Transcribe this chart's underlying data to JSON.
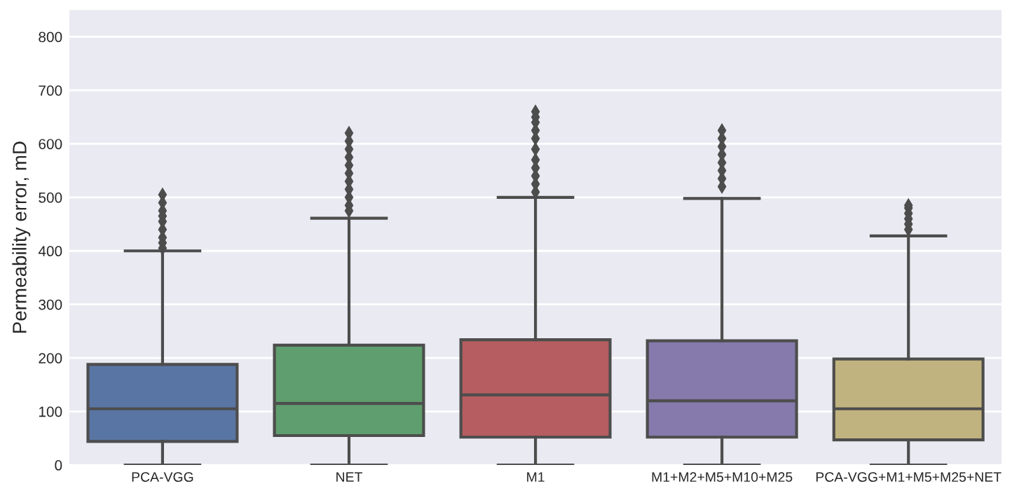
{
  "chart_data": {
    "type": "box",
    "ylabel": "Permeability error, mD",
    "categories": [
      "PCA-VGG",
      "NET",
      "M1",
      "M1+M2+M5+M10+M25",
      "PCA-VGG+M1+M5+M25+NET"
    ],
    "colors": [
      "#5975a4",
      "#5f9e6e",
      "#b55d60",
      "#857aab",
      "#c1b37f"
    ],
    "boxes": [
      {
        "low": 0,
        "q1": 44,
        "median": 105,
        "q3": 188,
        "high": 400,
        "outliers": [
          405,
          415,
          425,
          440,
          455,
          465,
          475,
          490,
          505
        ]
      },
      {
        "low": 0,
        "q1": 55,
        "median": 115,
        "q3": 224,
        "high": 461,
        "outliers": [
          475,
          485,
          500,
          515,
          530,
          545,
          560,
          575,
          590,
          605,
          620
        ]
      },
      {
        "low": 0,
        "q1": 52,
        "median": 131,
        "q3": 234,
        "high": 500,
        "outliers": [
          510,
          525,
          540,
          555,
          570,
          590,
          610,
          625,
          640,
          650,
          660
        ]
      },
      {
        "low": 0,
        "q1": 52,
        "median": 120,
        "q3": 232,
        "high": 498,
        "outliers": [
          520,
          535,
          550,
          565,
          580,
          595,
          610,
          625
        ]
      },
      {
        "low": 0,
        "q1": 47,
        "median": 105,
        "q3": 198,
        "high": 428,
        "outliers": [
          440,
          450,
          460,
          470,
          480,
          485
        ]
      }
    ],
    "ylim": [
      0,
      850
    ],
    "yticks": [
      0,
      100,
      200,
      300,
      400,
      500,
      600,
      700,
      800
    ],
    "grid": "y"
  }
}
